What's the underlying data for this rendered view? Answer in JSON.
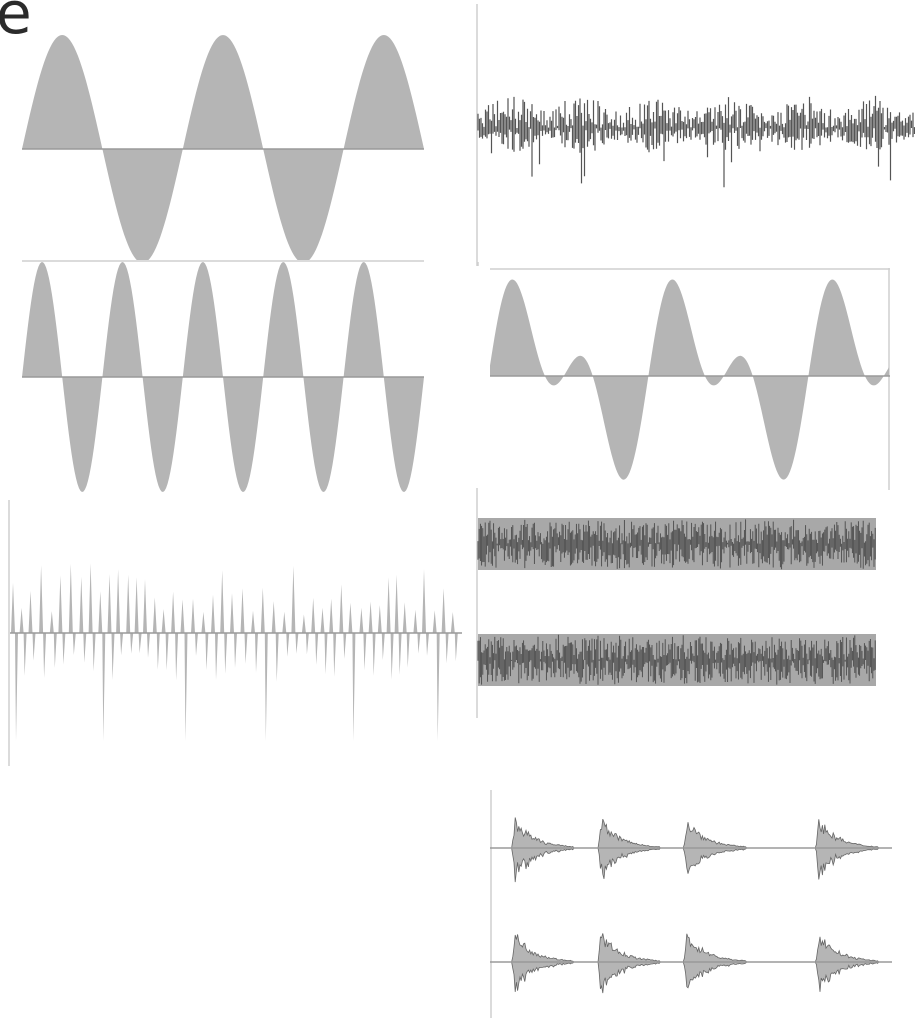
{
  "header": {
    "partial_letter": "e"
  },
  "style": {
    "fill_color": "#b5b5b5",
    "dark_color": "#555555",
    "axis_color": "#9a9a9a"
  },
  "waveforms": [
    {
      "id": "sine",
      "kind": "sine",
      "cycles": 2.5,
      "amplitude": 1.0
    },
    {
      "id": "noise",
      "kind": "noise",
      "amplitude": 0.6
    },
    {
      "id": "sine-fast",
      "kind": "sine",
      "cycles": 5,
      "amplitude": 1.0
    },
    {
      "id": "compound",
      "kind": "compound",
      "cycles": 2.5,
      "amplitude": 1.0
    },
    {
      "id": "spiky",
      "kind": "spiky",
      "amplitude": 1.0
    },
    {
      "id": "stereo-noise",
      "kind": "dense-noise",
      "channels": 2,
      "amplitude": 0.9
    },
    {
      "id": "bursts",
      "kind": "bursts",
      "channels": 2,
      "bursts": 4,
      "amplitude": 0.9
    }
  ]
}
